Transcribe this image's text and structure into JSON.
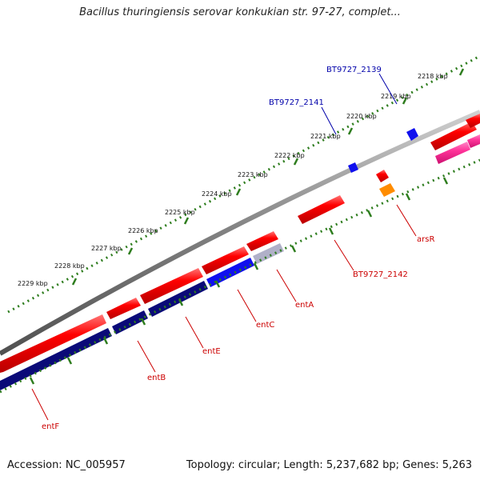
{
  "title": "Bacillus thuringiensis serovar konkukian str. 97-27, complet...",
  "footer": {
    "accession": "Accession: NC_005957",
    "summary": "Topology: circular; Length: 5,237,682 bp; Genes: 5,263"
  },
  "colors": {
    "backbone": "#808080",
    "tick": "#2e7d1e",
    "cds": "#ff0000",
    "gene": "#0a0a78",
    "gene_active": "#1010ee",
    "gene_light": "#b0b0c8",
    "rna": "#ff3399",
    "orange": "#ff8c00",
    "small_blue": "#1010ee",
    "label_red": "#cc0000",
    "label_blue": "#0000aa"
  },
  "scale_labels": [
    "2218 kbp",
    "2219 kbp",
    "2220 kbp",
    "2221 kbp",
    "2222 kbp",
    "2223 kbp",
    "2224 kbp",
    "2225 kbp",
    "2226 kbp",
    "2227 kbp",
    "2228 kbp",
    "2229 kbp"
  ],
  "gene_labels": [
    "BT9727_2139",
    "BT9727_2141",
    "arsR",
    "BT9727_2142",
    "entA",
    "entC",
    "entE",
    "entB",
    "entF"
  ]
}
